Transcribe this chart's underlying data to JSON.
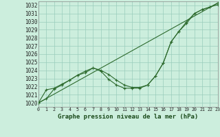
{
  "title": "Graphe pression niveau de la mer (hPa)",
  "bg_color": "#cceedd",
  "grid_color": "#99ccbb",
  "line_color": "#2d6a2d",
  "x_min": 0,
  "x_max": 23,
  "y_min": 1019.5,
  "y_max": 1032.5,
  "line1_x": [
    0,
    1,
    2,
    3,
    4,
    5,
    6,
    7,
    8,
    9,
    10,
    11,
    12,
    13,
    14,
    15,
    16,
    17,
    18,
    19,
    20,
    21,
    22,
    23
  ],
  "line1_y": [
    1020.0,
    1020.5,
    1021.7,
    1022.2,
    1022.8,
    1023.4,
    1023.7,
    1024.3,
    1023.9,
    1022.9,
    1022.2,
    1021.8,
    1021.8,
    1021.8,
    1022.2,
    1023.3,
    1024.9,
    1027.5,
    1028.8,
    1029.8,
    1031.0,
    1031.5,
    1031.8,
    1032.1
  ],
  "line2_x": [
    0,
    1,
    2,
    3,
    4,
    5,
    6,
    7,
    8,
    9,
    10,
    11,
    12,
    13,
    14,
    15,
    16,
    17,
    18,
    19,
    20,
    21,
    22,
    23
  ],
  "line2_y": [
    1020.0,
    1021.6,
    1021.8,
    1022.3,
    1022.8,
    1023.4,
    1023.9,
    1024.3,
    1024.0,
    1023.5,
    1022.8,
    1022.2,
    1021.9,
    1021.9,
    1022.2,
    1023.3,
    1024.9,
    1027.5,
    1028.8,
    1030.0,
    1031.0,
    1031.5,
    1031.8,
    1032.3
  ],
  "line3_x": [
    0,
    23
  ],
  "line3_y": [
    1020.0,
    1032.3
  ],
  "yticks": [
    1020,
    1021,
    1022,
    1023,
    1024,
    1025,
    1026,
    1027,
    1028,
    1029,
    1030,
    1031,
    1032
  ],
  "xticks": [
    0,
    1,
    2,
    3,
    4,
    5,
    6,
    7,
    8,
    9,
    10,
    11,
    12,
    13,
    14,
    15,
    16,
    17,
    18,
    19,
    20,
    21,
    22,
    23
  ],
  "ylabel_fontsize": 5.5,
  "xlabel_fontsize": 6.5,
  "marker": "+"
}
